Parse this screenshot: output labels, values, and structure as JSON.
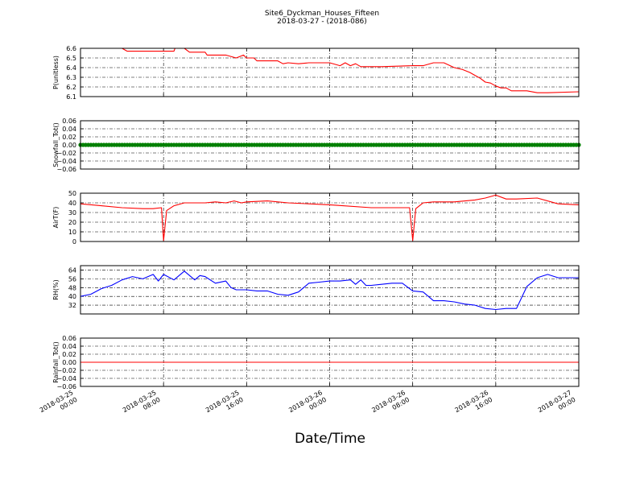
{
  "figure": {
    "title_line1": "Site6_Dyckman_Houses_Fifteen",
    "title_line2": "2018-03-27 - (2018-086)",
    "xlabel": "Date/Time"
  },
  "x_ticks": [
    {
      "line1": "2018-03-25",
      "line2": "00:00"
    },
    {
      "line1": "2018-03-25",
      "line2": "08:00"
    },
    {
      "line1": "2018-03-25",
      "line2": "16:00"
    },
    {
      "line1": "2018-03-26",
      "line2": "00:00"
    },
    {
      "line1": "2018-03-26",
      "line2": "08:00"
    },
    {
      "line1": "2018-03-26",
      "line2": "16:00"
    },
    {
      "line1": "2018-03-27",
      "line2": "00:00"
    }
  ],
  "chart_data": [
    {
      "type": "line",
      "ylabel": "P(unitless)",
      "ylim": [
        6.1,
        6.6
      ],
      "yticks": [
        "6.1",
        "6.2",
        "6.3",
        "6.4",
        "6.5",
        "6.6"
      ],
      "xlim": [
        "2018-03-25 00:00",
        "2018-03-27 00:00"
      ],
      "grid": true,
      "color": "#ff0000",
      "x": [
        0,
        4,
        4.5,
        9,
        9.1,
        10,
        10.5,
        12,
        12.2,
        14,
        15,
        15.7,
        16,
        16.7,
        17,
        18,
        19,
        19.5,
        20,
        21,
        22,
        24,
        25,
        25.5,
        26,
        26.5,
        27,
        29,
        32,
        33,
        34,
        35,
        36,
        36.8,
        37.5,
        38,
        38.5,
        39,
        39.5,
        40,
        40.5,
        41,
        41.5,
        42,
        43,
        44,
        45,
        48
      ],
      "y": [
        6.6,
        6.6,
        6.57,
        6.57,
        6.6,
        6.6,
        6.56,
        6.56,
        6.53,
        6.53,
        6.5,
        6.53,
        6.5,
        6.5,
        6.47,
        6.47,
        6.47,
        6.44,
        6.45,
        6.44,
        6.45,
        6.45,
        6.42,
        6.45,
        6.42,
        6.44,
        6.41,
        6.41,
        6.42,
        6.42,
        6.45,
        6.45,
        6.4,
        6.38,
        6.35,
        6.32,
        6.29,
        6.25,
        6.24,
        6.21,
        6.19,
        6.19,
        6.16,
        6.16,
        6.16,
        6.14,
        6.14,
        6.15
      ]
    },
    {
      "type": "scatter",
      "ylabel": "Snowfall_Tot()",
      "ylim": [
        -0.06,
        0.06
      ],
      "yticks": [
        "−0.06",
        "−0.04",
        "−0.02",
        "0.00",
        "0.02",
        "0.04",
        "0.06"
      ],
      "grid": true,
      "color": "#008000",
      "x_range_hours": [
        0,
        48
      ],
      "interval_minutes": 15,
      "y_constant": 0.0
    },
    {
      "type": "line",
      "ylabel": "AirT(F)",
      "ylim": [
        0,
        50
      ],
      "yticks": [
        "0",
        "10",
        "20",
        "30",
        "40",
        "50"
      ],
      "grid": true,
      "color": "#ff0000",
      "x": [
        0,
        2,
        4,
        6,
        7,
        7.8,
        8,
        8.3,
        9,
        10,
        12,
        13,
        14,
        14.8,
        15.5,
        16,
        18,
        20,
        22,
        24,
        28,
        31.7,
        32,
        32.3,
        33,
        34,
        36,
        38,
        39,
        40,
        41,
        42,
        44,
        46,
        48
      ],
      "y": [
        39,
        37,
        35,
        34,
        34,
        35,
        1,
        32,
        37,
        40,
        40,
        41,
        40,
        42,
        40,
        41,
        42,
        40,
        39,
        38,
        35,
        35,
        1,
        34,
        40,
        41,
        41,
        43,
        45,
        48,
        44,
        44,
        45,
        39,
        38
      ]
    },
    {
      "type": "line",
      "ylabel": "RH(%)",
      "ylim": [
        24,
        68
      ],
      "yticks": [
        "32",
        "40",
        "48",
        "56",
        "64"
      ],
      "grid": true,
      "color": "#0000ff",
      "x": [
        0,
        1,
        2,
        3,
        4,
        5,
        6,
        7,
        7.5,
        8,
        9,
        10,
        11,
        11.5,
        12,
        13,
        14,
        14.5,
        15,
        16,
        17,
        18,
        19,
        20,
        21,
        22,
        23,
        24,
        25,
        26,
        26.5,
        27,
        27.5,
        28,
        29,
        30,
        31,
        32,
        33,
        34,
        35,
        36,
        37,
        38,
        39,
        40,
        41,
        42,
        43,
        44,
        45,
        46,
        47,
        48
      ],
      "y": [
        40,
        42,
        47,
        50,
        55,
        58,
        56,
        60,
        54,
        60,
        55,
        63,
        55,
        59,
        58,
        52,
        54,
        48,
        46,
        46,
        45,
        45,
        42,
        41,
        44,
        52,
        53,
        54,
        54,
        55,
        51,
        55,
        50,
        50,
        51,
        52,
        52,
        45,
        44,
        36,
        36,
        35,
        33,
        32,
        29,
        28,
        29,
        29,
        49,
        57,
        60,
        57,
        57,
        57
      ]
    },
    {
      "type": "line",
      "ylabel": "Rainfall_Tot()",
      "ylim": [
        -0.06,
        0.06
      ],
      "yticks": [
        "−0.06",
        "−0.04",
        "−0.02",
        "0.00",
        "0.02",
        "0.04",
        "0.06"
      ],
      "grid": true,
      "color": "#ff0000",
      "x": [
        0,
        48
      ],
      "y": [
        0.0,
        0.0
      ]
    }
  ]
}
